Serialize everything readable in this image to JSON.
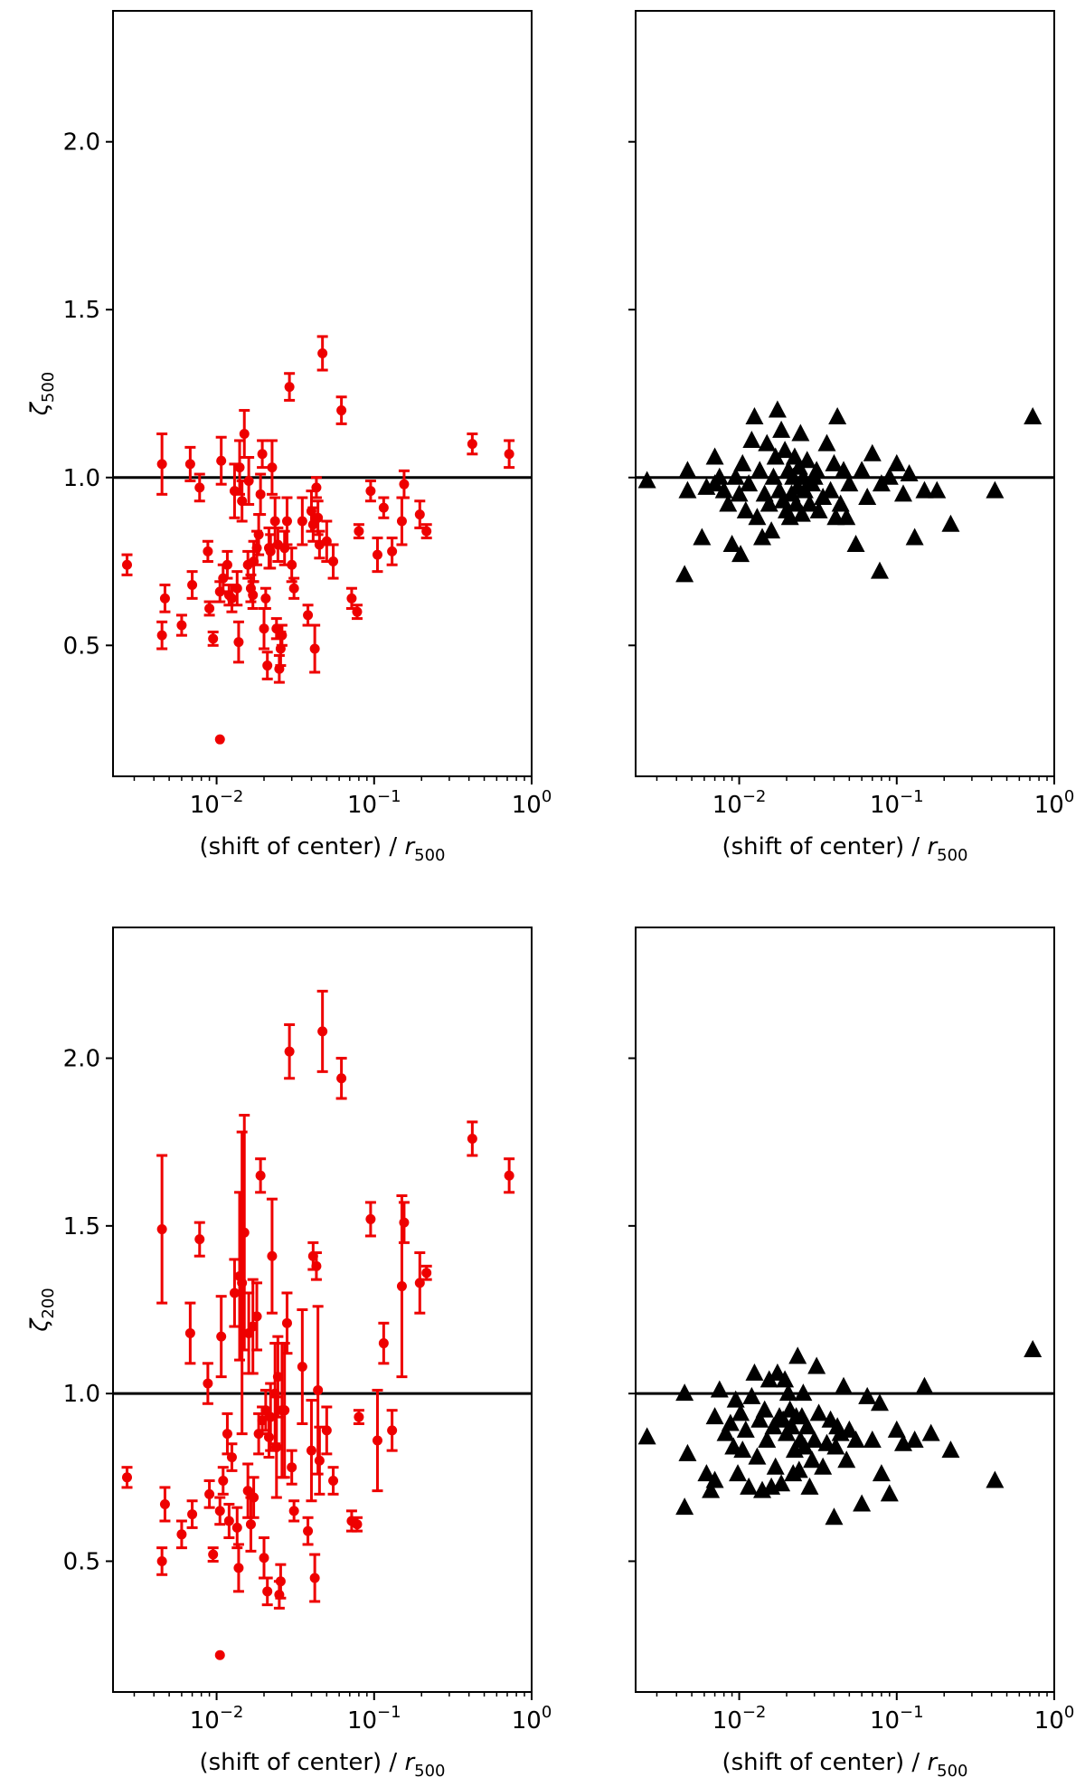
{
  "figure": {
    "xlabel_main": "(shift of center) / ",
    "xlabel_var": "r",
    "xlabel_sub": "500",
    "xtick_base": "10",
    "xticks_exp": [
      "−2",
      "−1",
      "0"
    ],
    "yticks": [
      "0.5",
      "1.0",
      "1.5",
      "2.0"
    ],
    "colors": {
      "observed": "#ee0000",
      "model": "#000000",
      "reference": "#000000"
    }
  },
  "chart_data": [
    {
      "type": "scatter",
      "panel": "top-left",
      "ylabel_var": "ζ",
      "ylabel_sub": "500",
      "xscale": "log",
      "xlim": [
        0.0022,
        1.0
      ],
      "ylim": [
        0.11,
        2.39
      ],
      "reference_line_y": 1.0,
      "marker": "circle",
      "series": [
        {
          "name": "observed",
          "color": "#ee0000",
          "x": [
            0.0027,
            0.0045,
            0.0045,
            0.0047,
            0.006,
            0.0068,
            0.007,
            0.0078,
            0.0088,
            0.009,
            0.0095,
            0.0105,
            0.0107,
            0.011,
            0.0117,
            0.012,
            0.0125,
            0.013,
            0.0135,
            0.0138,
            0.014,
            0.0145,
            0.015,
            0.0158,
            0.016,
            0.0165,
            0.017,
            0.0172,
            0.018,
            0.0185,
            0.019,
            0.0195,
            0.02,
            0.0205,
            0.021,
            0.0215,
            0.022,
            0.0225,
            0.0235,
            0.024,
            0.0245,
            0.025,
            0.0255,
            0.026,
            0.027,
            0.028,
            0.029,
            0.03,
            0.031,
            0.035,
            0.038,
            0.04,
            0.041,
            0.042,
            0.043,
            0.044,
            0.045,
            0.047,
            0.05,
            0.055,
            0.062,
            0.072,
            0.078,
            0.08,
            0.095,
            0.105,
            0.115,
            0.13,
            0.15,
            0.155,
            0.195,
            0.215,
            0.42,
            0.72
          ],
          "y": [
            0.74,
            0.53,
            1.04,
            0.64,
            0.56,
            1.04,
            0.68,
            0.97,
            0.78,
            0.61,
            0.52,
            0.66,
            1.05,
            0.7,
            0.74,
            0.65,
            0.64,
            0.96,
            0.67,
            0.51,
            1.03,
            0.93,
            1.13,
            0.74,
            0.99,
            0.67,
            0.65,
            0.75,
            0.79,
            0.83,
            0.95,
            1.07,
            0.55,
            0.64,
            0.44,
            0.79,
            0.78,
            1.03,
            0.87,
            0.55,
            0.8,
            0.43,
            0.49,
            0.53,
            0.79,
            0.87,
            1.27,
            0.74,
            0.67,
            0.87,
            0.59,
            0.9,
            0.86,
            0.49,
            0.97,
            0.88,
            0.8,
            1.37,
            0.81,
            0.75,
            1.2,
            0.64,
            0.6,
            0.84,
            0.96,
            0.77,
            0.91,
            0.78,
            0.87,
            0.98,
            0.89,
            0.84,
            1.1,
            1.07
          ],
          "err": [
            0.03,
            0.04,
            0.09,
            0.04,
            0.03,
            0.05,
            0.04,
            0.04,
            0.03,
            0.02,
            0.02,
            0.03,
            0.07,
            0.04,
            0.04,
            0.03,
            0.04,
            0.08,
            0.05,
            0.06,
            0.08,
            0.06,
            0.07,
            0.04,
            0.07,
            0.04,
            0.04,
            0.06,
            0.05,
            0.06,
            0.06,
            0.04,
            0.06,
            0.03,
            0.04,
            0.06,
            0.05,
            0.08,
            0.07,
            0.03,
            0.05,
            0.04,
            0.05,
            0.03,
            0.05,
            0.07,
            0.04,
            0.05,
            0.03,
            0.07,
            0.03,
            0.06,
            0.05,
            0.07,
            0.03,
            0.05,
            0.04,
            0.05,
            0.06,
            0.05,
            0.04,
            0.03,
            0.02,
            0.02,
            0.03,
            0.05,
            0.03,
            0.04,
            0.07,
            0.04,
            0.04,
            0.02,
            0.03,
            0.04
          ],
          "single_point": {
            "x": 0.0105,
            "y": 0.22
          }
        }
      ]
    },
    {
      "type": "scatter",
      "panel": "top-right",
      "xscale": "log",
      "xlim": [
        0.0022,
        1.0
      ],
      "ylim": [
        0.11,
        2.39
      ],
      "reference_line_y": 1.0,
      "marker": "triangle",
      "series": [
        {
          "name": "model",
          "color": "#000000",
          "x": [
            0.0026,
            0.0045,
            0.0047,
            0.0047,
            0.0058,
            0.0062,
            0.007,
            0.007,
            0.0075,
            0.008,
            0.0085,
            0.009,
            0.0095,
            0.01,
            0.0102,
            0.0105,
            0.011,
            0.0115,
            0.012,
            0.0125,
            0.013,
            0.0135,
            0.014,
            0.0145,
            0.015,
            0.0155,
            0.016,
            0.0165,
            0.017,
            0.0175,
            0.018,
            0.0185,
            0.019,
            0.0195,
            0.02,
            0.0205,
            0.021,
            0.0215,
            0.022,
            0.0225,
            0.023,
            0.0235,
            0.024,
            0.0245,
            0.025,
            0.0255,
            0.026,
            0.027,
            0.028,
            0.029,
            0.03,
            0.031,
            0.032,
            0.034,
            0.036,
            0.038,
            0.04,
            0.041,
            0.042,
            0.044,
            0.046,
            0.048,
            0.05,
            0.055,
            0.06,
            0.065,
            0.07,
            0.078,
            0.08,
            0.09,
            0.1,
            0.11,
            0.12,
            0.13,
            0.15,
            0.18,
            0.22,
            0.42,
            0.73
          ],
          "y": [
            0.99,
            0.71,
            1.02,
            0.96,
            0.82,
            0.97,
            1.06,
            0.98,
            1.0,
            0.96,
            0.92,
            0.8,
            1.0,
            0.95,
            0.77,
            1.04,
            0.9,
            0.98,
            1.11,
            1.18,
            0.88,
            1.02,
            0.82,
            0.95,
            1.1,
            0.92,
            0.84,
            1.0,
            1.06,
            1.2,
            0.96,
            1.14,
            0.93,
            1.08,
            0.9,
            1.02,
            0.88,
            0.95,
            1.0,
            1.06,
            0.92,
            0.97,
            1.03,
            1.13,
            0.89,
            1.0,
            0.96,
            1.05,
            0.92,
            0.98,
            1.0,
            1.02,
            0.9,
            0.94,
            1.1,
            0.96,
            1.04,
            0.88,
            1.18,
            0.92,
            1.02,
            0.88,
            0.98,
            0.8,
            1.02,
            0.94,
            1.07,
            0.72,
            0.98,
            1.0,
            1.04,
            0.95,
            1.01,
            0.82,
            0.96,
            0.96,
            0.86,
            0.96,
            1.18
          ]
        }
      ]
    },
    {
      "type": "scatter",
      "panel": "bottom-left",
      "ylabel_var": "ζ",
      "ylabel_sub": "200",
      "xscale": "log",
      "xlim": [
        0.0022,
        1.0
      ],
      "ylim": [
        0.11,
        2.39
      ],
      "reference_line_y": 1.0,
      "marker": "circle",
      "series": [
        {
          "name": "observed",
          "color": "#ee0000",
          "x": [
            0.0027,
            0.0045,
            0.0045,
            0.0047,
            0.006,
            0.0068,
            0.007,
            0.0078,
            0.0088,
            0.009,
            0.0095,
            0.0105,
            0.0107,
            0.011,
            0.0117,
            0.012,
            0.0125,
            0.013,
            0.0135,
            0.0138,
            0.014,
            0.0145,
            0.015,
            0.0158,
            0.016,
            0.0165,
            0.017,
            0.0172,
            0.018,
            0.0185,
            0.019,
            0.0195,
            0.02,
            0.0205,
            0.021,
            0.0215,
            0.022,
            0.0225,
            0.0235,
            0.024,
            0.0245,
            0.025,
            0.0255,
            0.026,
            0.027,
            0.028,
            0.029,
            0.03,
            0.031,
            0.035,
            0.038,
            0.04,
            0.041,
            0.042,
            0.043,
            0.044,
            0.045,
            0.047,
            0.05,
            0.055,
            0.062,
            0.072,
            0.078,
            0.08,
            0.095,
            0.105,
            0.115,
            0.13,
            0.15,
            0.155,
            0.195,
            0.215,
            0.42,
            0.72
          ],
          "y": [
            0.75,
            0.5,
            1.49,
            0.67,
            0.58,
            1.18,
            0.64,
            1.46,
            1.03,
            0.7,
            0.52,
            0.65,
            1.17,
            0.74,
            0.88,
            0.62,
            0.81,
            1.3,
            0.6,
            0.48,
            1.35,
            1.33,
            1.48,
            0.71,
            1.18,
            0.61,
            1.2,
            0.69,
            1.23,
            0.88,
            1.65,
            0.92,
            0.51,
            0.95,
            0.41,
            0.87,
            0.93,
            1.41,
            1.0,
            0.84,
            1.05,
            0.4,
            0.44,
            0.95,
            0.95,
            1.21,
            2.02,
            0.78,
            0.65,
            1.08,
            0.59,
            0.83,
            1.41,
            0.45,
            1.38,
            1.01,
            0.8,
            2.08,
            0.89,
            0.74,
            1.94,
            0.62,
            0.61,
            0.93,
            1.52,
            0.86,
            1.15,
            0.89,
            1.32,
            1.51,
            1.33,
            1.36,
            1.76,
            1.65
          ],
          "err": [
            0.03,
            0.04,
            0.22,
            0.05,
            0.04,
            0.09,
            0.04,
            0.05,
            0.06,
            0.04,
            0.02,
            0.04,
            0.12,
            0.04,
            0.06,
            0.05,
            0.04,
            0.1,
            0.06,
            0.07,
            0.25,
            0.45,
            0.35,
            0.08,
            0.12,
            0.08,
            0.14,
            0.06,
            0.1,
            0.06,
            0.05,
            0.04,
            0.06,
            0.06,
            0.04,
            0.06,
            0.1,
            0.17,
            0.15,
            0.15,
            0.12,
            0.04,
            0.05,
            0.2,
            0.2,
            0.09,
            0.08,
            0.05,
            0.03,
            0.17,
            0.04,
            0.15,
            0.04,
            0.07,
            0.04,
            0.25,
            0.1,
            0.12,
            0.07,
            0.04,
            0.06,
            0.03,
            0.02,
            0.02,
            0.05,
            0.15,
            0.06,
            0.06,
            0.27,
            0.06,
            0.09,
            0.02,
            0.05,
            0.05
          ],
          "single_point": {
            "x": 0.0105,
            "y": 0.22
          }
        }
      ]
    },
    {
      "type": "scatter",
      "panel": "bottom-right",
      "xscale": "log",
      "xlim": [
        0.0022,
        1.0
      ],
      "ylim": [
        0.11,
        2.39
      ],
      "reference_line_y": 1.0,
      "marker": "triangle",
      "series": [
        {
          "name": "model",
          "color": "#000000",
          "x": [
            0.0026,
            0.0045,
            0.0045,
            0.0047,
            0.0062,
            0.0066,
            0.007,
            0.007,
            0.0075,
            0.0082,
            0.0088,
            0.0092,
            0.0095,
            0.0098,
            0.0102,
            0.0105,
            0.011,
            0.0115,
            0.012,
            0.0125,
            0.013,
            0.0135,
            0.014,
            0.0145,
            0.015,
            0.0155,
            0.016,
            0.0165,
            0.017,
            0.0175,
            0.018,
            0.0185,
            0.019,
            0.0195,
            0.02,
            0.0205,
            0.021,
            0.0215,
            0.022,
            0.0225,
            0.023,
            0.0235,
            0.024,
            0.0245,
            0.025,
            0.0255,
            0.026,
            0.027,
            0.028,
            0.029,
            0.03,
            0.031,
            0.032,
            0.034,
            0.036,
            0.038,
            0.04,
            0.041,
            0.042,
            0.044,
            0.046,
            0.048,
            0.05,
            0.055,
            0.06,
            0.065,
            0.07,
            0.078,
            0.08,
            0.09,
            0.1,
            0.11,
            0.13,
            0.15,
            0.165,
            0.22,
            0.42,
            0.73
          ],
          "y": [
            0.87,
            0.66,
            1.0,
            0.82,
            0.76,
            0.71,
            0.74,
            0.93,
            1.01,
            0.88,
            0.91,
            0.84,
            0.98,
            0.76,
            0.94,
            0.83,
            0.89,
            0.72,
            0.99,
            1.06,
            0.81,
            0.92,
            0.71,
            0.95,
            0.86,
            1.04,
            0.72,
            0.9,
            0.78,
            1.06,
            0.93,
            0.73,
            0.92,
            1.04,
            0.88,
            1.0,
            0.95,
            0.9,
            0.76,
            0.83,
            0.93,
            1.11,
            0.77,
            0.86,
            0.93,
            1.0,
            0.84,
            0.9,
            0.72,
            0.8,
            0.86,
            1.08,
            0.94,
            0.78,
            0.85,
            0.92,
            0.63,
            0.84,
            0.9,
            0.88,
            1.02,
            0.8,
            0.89,
            0.86,
            0.67,
            0.99,
            0.86,
            0.97,
            0.76,
            0.7,
            0.89,
            0.85,
            0.86,
            1.02,
            0.88,
            0.83,
            0.74,
            1.13
          ]
        }
      ]
    }
  ]
}
